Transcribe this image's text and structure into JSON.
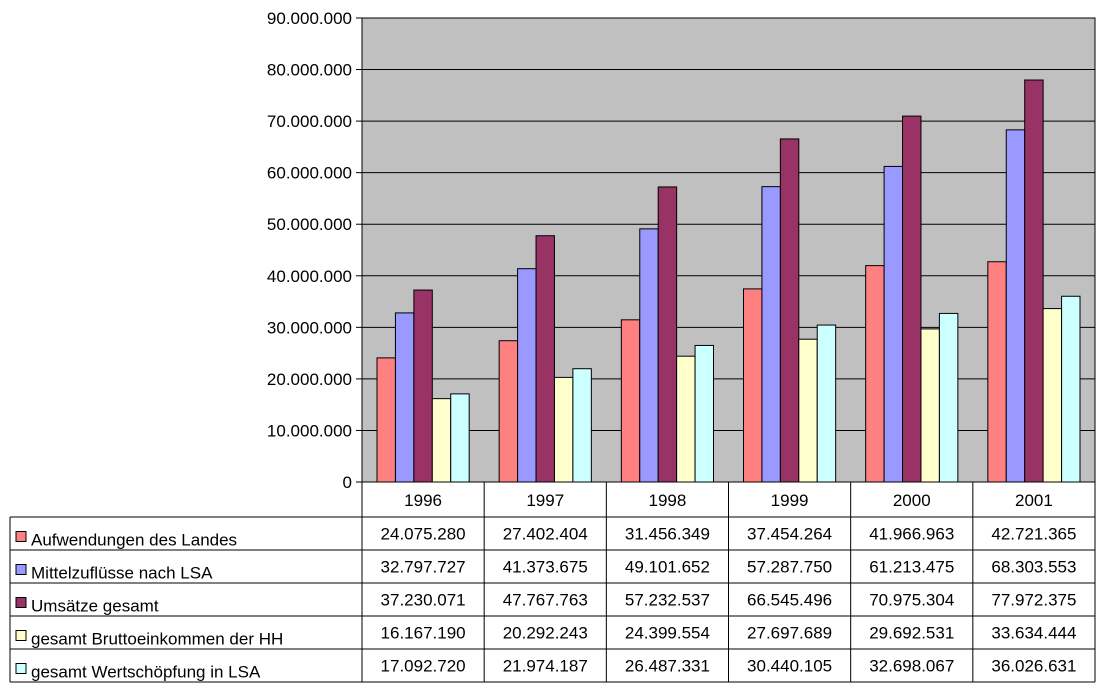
{
  "chart_data": {
    "type": "bar",
    "categories": [
      "1996",
      "1997",
      "1998",
      "1999",
      "2000",
      "2001"
    ],
    "y_ticks": [
      "0",
      "10.000.000",
      "20.000.000",
      "30.000.000",
      "40.000.000",
      "50.000.000",
      "60.000.000",
      "70.000.000",
      "80.000.000",
      "90.000.000"
    ],
    "ylim": [
      0,
      90000000
    ],
    "grid": true,
    "legend": "data-table",
    "plot_background": "#c0c0c0",
    "series": [
      {
        "name": "Aufwendungen des Landes",
        "color": "#ff8080",
        "values": [
          24075280,
          27402404,
          31456349,
          37454264,
          41966963,
          42721365
        ],
        "labels": [
          "24.075.280",
          "27.402.404",
          "31.456.349",
          "37.454.264",
          "41.966.963",
          "42.721.365"
        ]
      },
      {
        "name": "Mittelzuflüsse nach LSA",
        "color": "#9999ff",
        "values": [
          32797727,
          41373675,
          49101652,
          57287750,
          61213475,
          68303553
        ],
        "labels": [
          "32.797.727",
          "41.373.675",
          "49.101.652",
          "57.287.750",
          "61.213.475",
          "68.303.553"
        ]
      },
      {
        "name": "Umsätze gesamt",
        "color": "#993366",
        "values": [
          37230071,
          47767763,
          57232537,
          66545496,
          70975304,
          77972375
        ],
        "labels": [
          "37.230.071",
          "47.767.763",
          "57.232.537",
          "66.545.496",
          "70.975.304",
          "77.972.375"
        ]
      },
      {
        "name": "gesamt Bruttoeinkommen der HH",
        "color": "#ffffcc",
        "values": [
          16167190,
          20292243,
          24399554,
          27697689,
          29692531,
          33634444
        ],
        "labels": [
          "16.167.190",
          "20.292.243",
          "24.399.554",
          "27.697.689",
          "29.692.531",
          "33.634.444"
        ]
      },
      {
        "name": "gesamt Wertschöpfung in LSA",
        "color": "#ccffff",
        "values": [
          17092720,
          21974187,
          26487331,
          30440105,
          32698067,
          36026631
        ],
        "labels": [
          "17.092.720",
          "21.974.187",
          "26.487.331",
          "30.440.105",
          "32.698.067",
          "36.026.631"
        ]
      }
    ]
  }
}
